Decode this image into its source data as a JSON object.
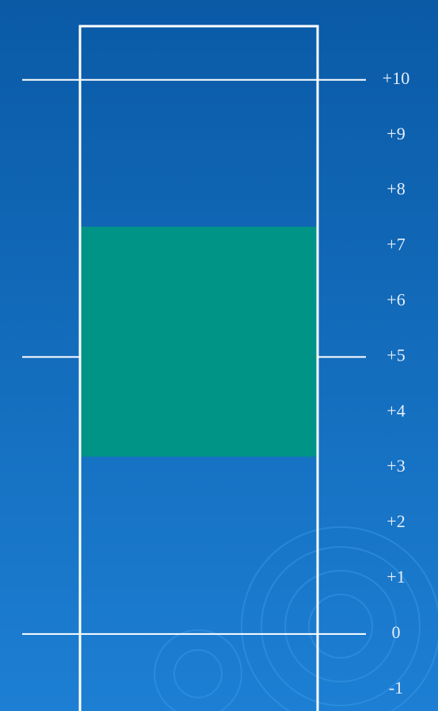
{
  "chart_data": {
    "type": "range",
    "low": 3.2,
    "high": 7.35,
    "color": "#009487",
    "ylim": [
      -1.39,
      10.97
    ],
    "yticks": [
      {
        "value": 10,
        "label": "+10"
      },
      {
        "value": 9,
        "label": "+9"
      },
      {
        "value": 8,
        "label": "+8"
      },
      {
        "value": 7,
        "label": "+7"
      },
      {
        "value": 6,
        "label": "+6"
      },
      {
        "value": 5,
        "label": "+5"
      },
      {
        "value": 4,
        "label": "+4"
      },
      {
        "value": 3,
        "label": "+3"
      },
      {
        "value": 2,
        "label": "+2"
      },
      {
        "value": 1,
        "label": "+1"
      },
      0,
      -1
    ]
  }
}
